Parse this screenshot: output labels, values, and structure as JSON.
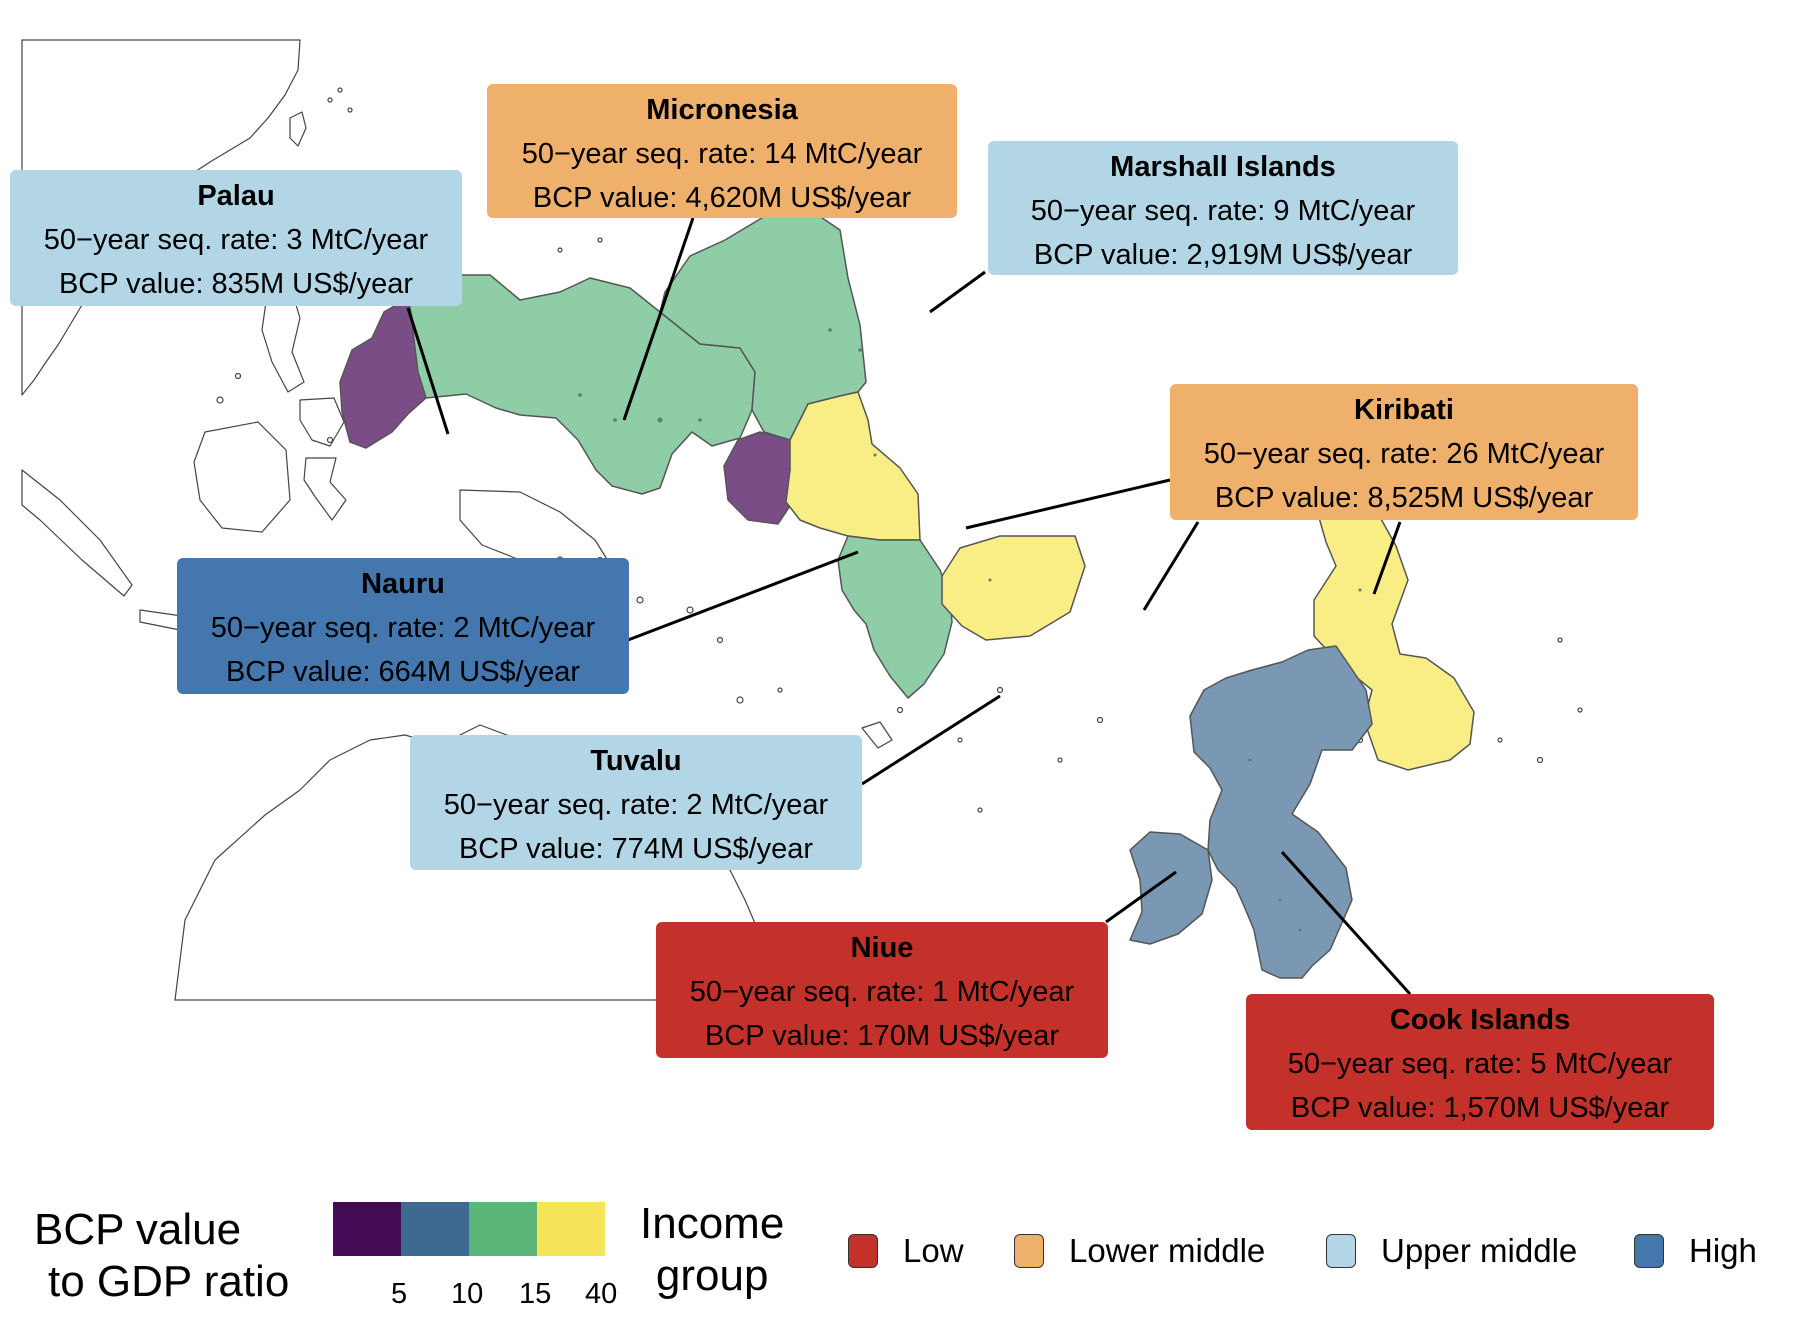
{
  "colors": {
    "low": "#c4312a",
    "lower_middle": "#efb06c",
    "upper_middle": "#b3d6e6",
    "high": "#4377ae",
    "ratio_5": "#440c56",
    "ratio_10": "#3f6a8f",
    "ratio_15": "#5cb679",
    "ratio_40": "#f5e35a",
    "eez_purple": "#7b4d86",
    "eez_slate": "#7a98b3",
    "eez_green": "#8ecda5",
    "eez_yellow": "#f9ee86",
    "land": "#ffffff",
    "coast": "#444444"
  },
  "countries": [
    {
      "id": "palau",
      "name": "Palau",
      "rate": "50−year seq. rate: 3 MtC/year",
      "value": "BCP value: 835M US$/year",
      "income_group": "Upper middle"
    },
    {
      "id": "micronesia",
      "name": "Micronesia",
      "rate": "50−year seq. rate: 14 MtC/year",
      "value": "BCP value: 4,620M US$/year",
      "income_group": "Lower middle"
    },
    {
      "id": "marshall",
      "name": "Marshall Islands",
      "rate": "50−year seq. rate: 9 MtC/year",
      "value": "BCP value: 2,919M US$/year",
      "income_group": "Upper middle"
    },
    {
      "id": "kiribati",
      "name": "Kiribati",
      "rate": "50−year seq. rate: 26 MtC/year",
      "value": "BCP value: 8,525M US$/year",
      "income_group": "Lower middle"
    },
    {
      "id": "nauru",
      "name": "Nauru",
      "rate": "50−year seq. rate: 2 MtC/year",
      "value": "BCP value: 664M US$/year",
      "income_group": "High"
    },
    {
      "id": "tuvalu",
      "name": "Tuvalu",
      "rate": "50−year seq. rate: 2 MtC/year",
      "value": "BCP value: 774M US$/year",
      "income_group": "Upper middle"
    },
    {
      "id": "niue",
      "name": "Niue",
      "rate": "50−year seq. rate: 1 MtC/year",
      "value": "BCP value: 170M US$/year",
      "income_group": "Low"
    },
    {
      "id": "cook",
      "name": "Cook Islands",
      "rate": "50−year seq. rate: 5 MtC/year",
      "value": "BCP value: 1,570M US$/year",
      "income_group": "Low"
    }
  ],
  "ratio_by_country": {
    "palau": "5",
    "nauru": "5",
    "micronesia": "15",
    "marshall": "15",
    "tuvalu": "15",
    "kiribati": "40",
    "niue": "10",
    "cook": "10"
  },
  "legend": {
    "ratio_title_line1": "BCP value",
    "ratio_title_line2": "to GDP ratio",
    "ratio_ticks": [
      "5",
      "10",
      "15",
      "40"
    ],
    "income_title_line1": "Income",
    "income_title_line2": "group",
    "income_items": [
      {
        "label": "Low",
        "color_key": "low"
      },
      {
        "label": "Lower middle",
        "color_key": "lower_middle"
      },
      {
        "label": "Upper middle",
        "color_key": "upper_middle"
      },
      {
        "label": "High",
        "color_key": "high"
      }
    ]
  }
}
